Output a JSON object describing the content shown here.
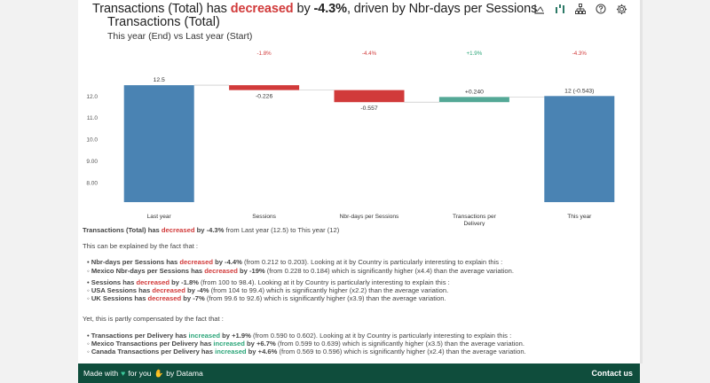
{
  "headline": {
    "prefix": "Transactions (Total) has ",
    "verb": "decreased",
    "middle": " by ",
    "value": "-4.3%",
    "suffix": ", driven by Nbr-days per Sessions"
  },
  "toolbar": {
    "icons": [
      "chart-icon",
      "bar-icon",
      "hierarchy-icon",
      "help-icon",
      "settings-icon"
    ]
  },
  "colors": {
    "bar_base": "#4a83b3",
    "bar_neg": "#d13a3a",
    "bar_pos": "#54a896",
    "accent_neg": "#d13a3a",
    "accent_pos": "#2aa578",
    "footer_bg": "#0f4d3c"
  },
  "chart_data": {
    "type": "bar",
    "title": "Transactions (Total)",
    "subtitle": "This year (End) vs Last year (Start)",
    "categories": [
      "Last year",
      "Sessions",
      "Nbr-days per Sessions",
      "Transactions per Delivery",
      "This year"
    ],
    "values": [
      12.5,
      -0.226,
      -0.557,
      0.24,
      12
    ],
    "value_labels": [
      "12.5",
      "-0.226",
      "-0.557",
      "+0.240",
      "12 (-0.543)"
    ],
    "pct_labels": [
      "",
      "-1.8%",
      "-4.4%",
      "+1.9%",
      "-4.3%"
    ],
    "kinds": [
      "total",
      "neg",
      "neg",
      "pos",
      "total"
    ],
    "yticks": [
      "12.0",
      "11.0",
      "10.0",
      "9.00",
      "8.00"
    ],
    "ytick_values": [
      12,
      11,
      10,
      9,
      8
    ],
    "ylim": [
      7.1,
      12.75
    ],
    "grid": false
  },
  "summary": {
    "line1": {
      "a": "Transactions (Total) has ",
      "b": "decreased",
      "c": " by -4.3%",
      "d": " from Last year (12.5) to This year (12)"
    },
    "explained": "This can be explained by the fact that :",
    "b1": {
      "a": "Nbr-days per Sessions has ",
      "b": "decreased",
      "c": " by -4.4%",
      "d": " (from 0.212 to 0.203). Looking at it by Country is particularly interesting to explain this :"
    },
    "b1s1": {
      "a": "Mexico Nbr-days per Sessions has ",
      "b": "decreased",
      "c": " by -19%",
      "d": " (from 0.228 to 0.184) which is significantly higher (x4.4) than the average variation."
    },
    "b2": {
      "a": "Sessions has ",
      "b": "decreased",
      "c": " by -1.8%",
      "d": " (from 100 to 98.4). Looking at it by Country is particularly interesting to explain this :"
    },
    "b2s1": {
      "a": "USA Sessions has ",
      "b": "decreased",
      "c": " by -4%",
      "d": " (from 104 to 99.4) which is significantly higher (x2.2) than the average variation."
    },
    "b2s2": {
      "a": "UK Sessions has ",
      "b": "decreased",
      "c": " by -7%",
      "d": " (from 99.6 to 92.6) which is significantly higher (x3.9) than the average variation."
    },
    "compensated": "Yet, this is partly compensated by the fact that :",
    "b3": {
      "a": "Transactions per Delivery has ",
      "b": "increased",
      "c": " by +1.9%",
      "d": " (from 0.590 to 0.602). Looking at it by Country is particularly interesting to explain this :"
    },
    "b3s1": {
      "a": "Mexico Transactions per Delivery has ",
      "b": "increased",
      "c": " by +6.7%",
      "d": " (from 0.599 to 0.639) which is significantly higher (x3.5) than the average variation."
    },
    "b3s2": {
      "a": "Canada Transactions per Delivery has ",
      "b": "increased",
      "c": " by +4.6%",
      "d": " (from 0.569 to 0.596) which is significantly higher (x2.4) than the average variation."
    }
  },
  "footer": {
    "made_with": "Made with",
    "for_you": "for you",
    "by": "by Datama",
    "contact": "Contact us"
  }
}
